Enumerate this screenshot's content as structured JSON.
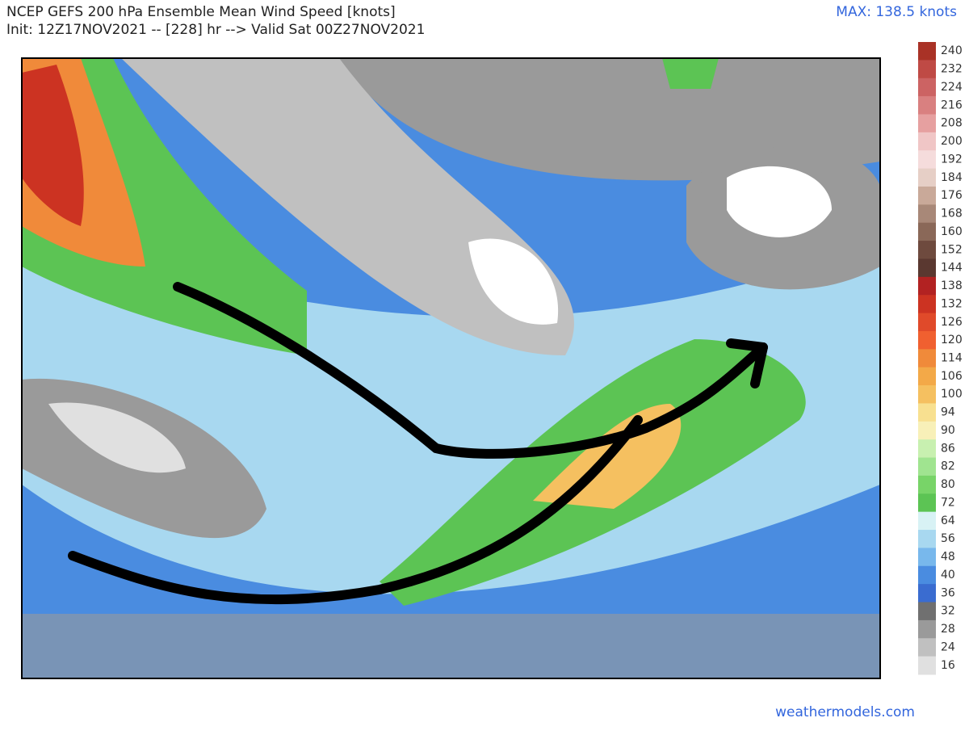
{
  "header": {
    "title": "NCEP GEFS 200 hPa Ensemble Mean Wind Speed [knots]",
    "subtitle": "Init: 12Z17NOV2021 -- [228] hr --> Valid Sat 00Z27NOV2021",
    "max_label": "MAX: 138.5 knots"
  },
  "legend": {
    "items": [
      {
        "label": 240,
        "color": "#a93226"
      },
      {
        "label": 232,
        "color": "#bf4a45"
      },
      {
        "label": 224,
        "color": "#cc6363"
      },
      {
        "label": 216,
        "color": "#d98080"
      },
      {
        "label": 208,
        "color": "#e6a0a0"
      },
      {
        "label": 200,
        "color": "#f0c6c6"
      },
      {
        "label": 192,
        "color": "#f5dcdc"
      },
      {
        "label": 184,
        "color": "#e6cfc6"
      },
      {
        "label": 176,
        "color": "#c9a999"
      },
      {
        "label": 168,
        "color": "#a88878"
      },
      {
        "label": 160,
        "color": "#8a6858"
      },
      {
        "label": 152,
        "color": "#6e4a3e"
      },
      {
        "label": 144,
        "color": "#5a3830"
      },
      {
        "label": 138,
        "color": "#b22222"
      },
      {
        "label": 132,
        "color": "#cc3322"
      },
      {
        "label": 126,
        "color": "#e04a2a"
      },
      {
        "label": 120,
        "color": "#f06030"
      },
      {
        "label": 114,
        "color": "#f08a3a"
      },
      {
        "label": 106,
        "color": "#f3a948"
      },
      {
        "label": 100,
        "color": "#f5c060"
      },
      {
        "label": 94,
        "color": "#f8e090"
      },
      {
        "label": 90,
        "color": "#f8f0b8"
      },
      {
        "label": 86,
        "color": "#c8f0b0"
      },
      {
        "label": 82,
        "color": "#a0e490"
      },
      {
        "label": 80,
        "color": "#78d468"
      },
      {
        "label": 72,
        "color": "#5cc454"
      },
      {
        "label": 64,
        "color": "#d8f2f5"
      },
      {
        "label": 56,
        "color": "#a8d8f0"
      },
      {
        "label": 48,
        "color": "#78b8ec"
      },
      {
        "label": 40,
        "color": "#4a8ce0"
      },
      {
        "label": 36,
        "color": "#3a6cd0"
      },
      {
        "label": 32,
        "color": "#707070"
      },
      {
        "label": 28,
        "color": "#9a9a9a"
      },
      {
        "label": 24,
        "color": "#c0c0c0"
      },
      {
        "label": 16,
        "color": "#e0e0e0"
      }
    ]
  },
  "footer": {
    "credit": "weathermodels.com"
  }
}
